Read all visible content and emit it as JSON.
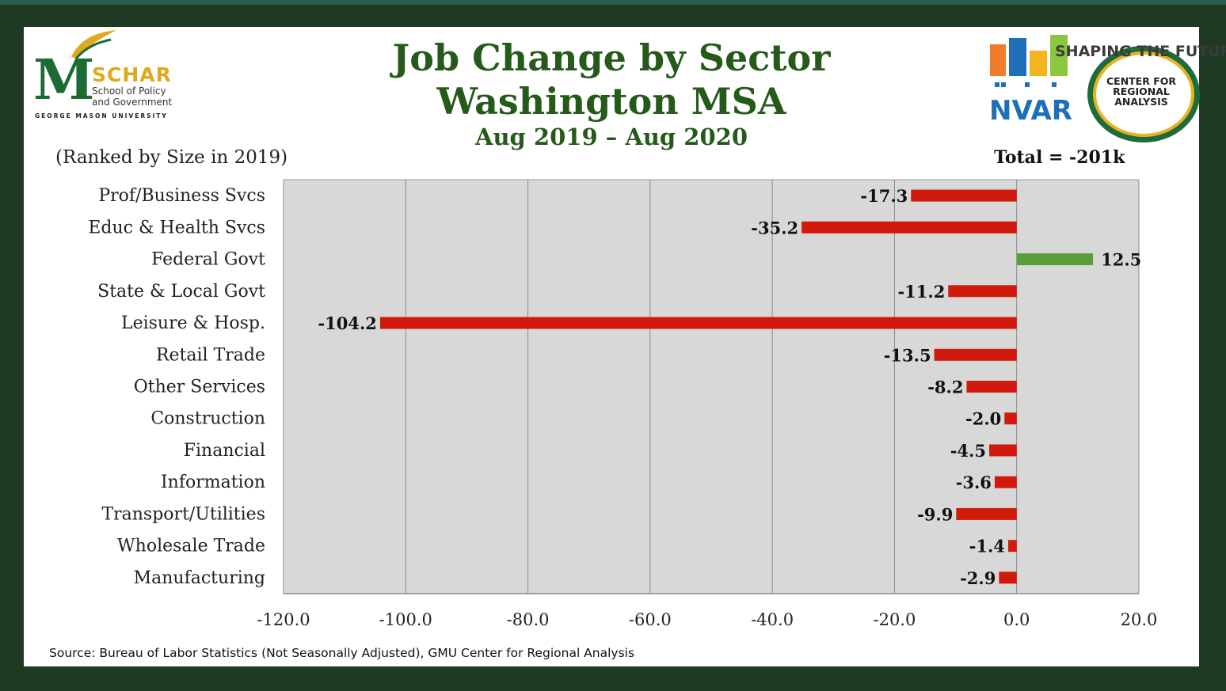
{
  "title_line1": "Job Change by Sector",
  "title_line2": "Washington MSA",
  "subtitle": "Aug 2019 – Aug 2020",
  "ranked_note": "(Ranked by Size in 2019)",
  "total_label": "Total = -201k",
  "source_note": "Source: Bureau of Labor Statistics (Not Seasonally Adjusted), GMU Center for Regional Analysis",
  "logos": {
    "left": {
      "m": "M",
      "name": "SCHAR",
      "sub1": "School of Policy",
      "sub2": "and Government",
      "university": "GEORGE MASON UNIVERSITY"
    },
    "nvar": "NVAR",
    "shaping": "SHAPING THE FUTURE",
    "cra": [
      "CENTER FOR",
      "REGIONAL",
      "ANALYSIS"
    ]
  },
  "colors": {
    "negative": "#d11a0b",
    "positive": "#5a9e3a",
    "plot_bg": "#d8d8d8",
    "title": "#255a1a"
  },
  "chart_data": {
    "type": "bar",
    "orientation": "horizontal",
    "title": "Job Change by Sector Washington MSA",
    "subtitle": "Aug 2019 – Aug 2020",
    "categories": [
      "Prof/Business Svcs",
      "Educ & Health Svcs",
      "Federal Govt",
      "State & Local Govt",
      "Leisure & Hosp.",
      "Retail Trade",
      "Other Services",
      "Construction",
      "Financial",
      "Information",
      "Transport/Utilities",
      "Wholesale Trade",
      "Manufacturing"
    ],
    "values": [
      -17.3,
      -35.2,
      12.5,
      -11.2,
      -104.2,
      -13.5,
      -8.2,
      -2.0,
      -4.5,
      -3.6,
      -9.9,
      -1.4,
      -2.9
    ],
    "value_labels": [
      "-17.3",
      "-35.2",
      "12.5",
      "-11.2",
      "-104.2",
      "-13.5",
      "-8.2",
      "-2.0",
      "-4.5",
      "-3.6",
      "-9.9",
      "-1.4",
      "-2.9"
    ],
    "xlim": [
      -120,
      20
    ],
    "xticks": [
      -120,
      -100,
      -80,
      -60,
      -40,
      -20,
      0,
      20
    ],
    "xtick_labels": [
      "-120.0",
      "-100.0",
      "-80.0",
      "-60.0",
      "-40.0",
      "-20.0",
      "0.0",
      "20.0"
    ],
    "grid": true,
    "xlabel": "",
    "ylabel": ""
  }
}
